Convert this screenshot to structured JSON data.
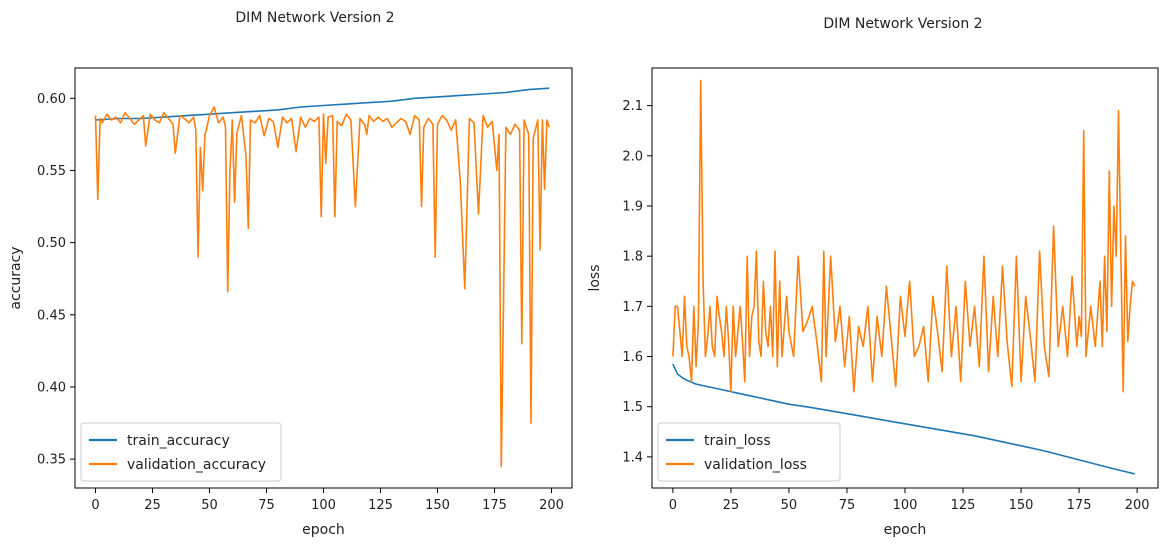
{
  "chart_data": [
    {
      "type": "line",
      "title": "DIM Network Version 2",
      "xlabel": "epoch",
      "ylabel": "accuracy",
      "xlim": [
        -9,
        209
      ],
      "ylim": [
        0.33,
        0.621
      ],
      "xticks": [
        "0",
        "25",
        "50",
        "75",
        "100",
        "125",
        "150",
        "175",
        "200"
      ],
      "yticks": [
        "0.35",
        "0.40",
        "0.45",
        "0.50",
        "0.55",
        "0.60"
      ],
      "grid": false,
      "legend_position": "lower-left",
      "series": [
        {
          "name": "train_accuracy",
          "color": "#1f77b4",
          "x": [
            0,
            10,
            20,
            30,
            40,
            50,
            60,
            70,
            80,
            90,
            100,
            110,
            120,
            130,
            140,
            150,
            160,
            170,
            180,
            190,
            199
          ],
          "y": [
            0.585,
            0.586,
            0.586,
            0.587,
            0.588,
            0.589,
            0.59,
            0.591,
            0.592,
            0.594,
            0.595,
            0.596,
            0.597,
            0.598,
            0.6,
            0.601,
            0.602,
            0.603,
            0.604,
            0.606,
            0.607
          ]
        },
        {
          "name": "validation_accuracy",
          "color": "#ff7f0e",
          "x": [
            0,
            1,
            2,
            3,
            5,
            7,
            9,
            11,
            13,
            15,
            17,
            19,
            21,
            22,
            24,
            26,
            28,
            30,
            32,
            34,
            35,
            37,
            39,
            41,
            43,
            44,
            45,
            46,
            47,
            48,
            50,
            52,
            54,
            56,
            57,
            58,
            59,
            60,
            61,
            62,
            64,
            66,
            67,
            68,
            70,
            72,
            74,
            76,
            78,
            80,
            82,
            84,
            86,
            88,
            90,
            92,
            94,
            96,
            98,
            99,
            100,
            101,
            102,
            104,
            105,
            106,
            108,
            110,
            112,
            114,
            116,
            118,
            119,
            120,
            122,
            124,
            126,
            128,
            130,
            132,
            134,
            136,
            138,
            140,
            142,
            143,
            144,
            146,
            148,
            149,
            150,
            152,
            154,
            156,
            158,
            160,
            162,
            164,
            166,
            168,
            170,
            172,
            174,
            176,
            177,
            178,
            180,
            182,
            184,
            186,
            187,
            188,
            190,
            191,
            192,
            194,
            195,
            196,
            197,
            198,
            199
          ],
          "y": [
            0.588,
            0.53,
            0.586,
            0.583,
            0.589,
            0.585,
            0.587,
            0.583,
            0.59,
            0.586,
            0.582,
            0.585,
            0.588,
            0.567,
            0.589,
            0.585,
            0.583,
            0.59,
            0.586,
            0.582,
            0.562,
            0.588,
            0.586,
            0.583,
            0.587,
            0.578,
            0.49,
            0.566,
            0.536,
            0.574,
            0.588,
            0.594,
            0.583,
            0.587,
            0.58,
            0.466,
            0.55,
            0.585,
            0.528,
            0.576,
            0.588,
            0.56,
            0.51,
            0.585,
            0.583,
            0.588,
            0.574,
            0.586,
            0.584,
            0.566,
            0.587,
            0.583,
            0.586,
            0.563,
            0.587,
            0.58,
            0.586,
            0.584,
            0.587,
            0.518,
            0.589,
            0.555,
            0.587,
            0.588,
            0.518,
            0.584,
            0.581,
            0.589,
            0.585,
            0.525,
            0.586,
            0.582,
            0.575,
            0.588,
            0.584,
            0.587,
            0.584,
            0.586,
            0.58,
            0.583,
            0.586,
            0.584,
            0.575,
            0.588,
            0.585,
            0.525,
            0.58,
            0.586,
            0.582,
            0.49,
            0.582,
            0.588,
            0.585,
            0.578,
            0.585,
            0.542,
            0.468,
            0.586,
            0.583,
            0.52,
            0.588,
            0.58,
            0.584,
            0.55,
            0.575,
            0.345,
            0.58,
            0.575,
            0.582,
            0.578,
            0.43,
            0.585,
            0.575,
            0.375,
            0.572,
            0.585,
            0.495,
            0.585,
            0.537,
            0.585,
            0.58
          ]
        }
      ]
    },
    {
      "type": "line",
      "title": "DIM Network Version 2",
      "xlabel": "epoch",
      "ylabel": "loss",
      "xlim": [
        -9,
        209
      ],
      "ylim": [
        1.338,
        2.175
      ],
      "xticks": [
        "0",
        "25",
        "50",
        "75",
        "100",
        "125",
        "150",
        "175",
        "200"
      ],
      "yticks": [
        "1.4",
        "1.5",
        "1.6",
        "1.7",
        "1.8",
        "1.9",
        "2.0",
        "2.1"
      ],
      "grid": false,
      "legend_position": "lower-left",
      "series": [
        {
          "name": "train_loss",
          "color": "#1f77b4",
          "x": [
            0,
            2,
            5,
            10,
            20,
            30,
            40,
            50,
            60,
            70,
            80,
            90,
            100,
            110,
            120,
            130,
            140,
            150,
            160,
            170,
            180,
            190,
            199
          ],
          "y": [
            1.585,
            1.565,
            1.555,
            1.545,
            1.535,
            1.525,
            1.515,
            1.505,
            1.498,
            1.49,
            1.482,
            1.474,
            1.466,
            1.458,
            1.45,
            1.442,
            1.432,
            1.422,
            1.412,
            1.4,
            1.388,
            1.376,
            1.366
          ]
        },
        {
          "name": "validation_loss",
          "color": "#ff7f0e",
          "x": [
            0,
            1,
            2,
            3,
            4,
            5,
            6,
            7,
            8,
            9,
            10,
            11,
            12,
            13,
            14,
            15,
            16,
            17,
            18,
            19,
            20,
            21,
            22,
            23,
            24,
            25,
            26,
            27,
            28,
            29,
            30,
            31,
            32,
            33,
            34,
            35,
            36,
            37,
            38,
            39,
            40,
            41,
            42,
            43,
            44,
            45,
            46,
            47,
            48,
            49,
            50,
            52,
            54,
            56,
            58,
            60,
            62,
            64,
            65,
            66,
            68,
            70,
            72,
            74,
            76,
            78,
            80,
            82,
            84,
            86,
            88,
            90,
            92,
            94,
            96,
            98,
            100,
            102,
            104,
            106,
            108,
            110,
            112,
            114,
            116,
            118,
            120,
            122,
            124,
            126,
            128,
            130,
            132,
            134,
            136,
            138,
            140,
            142,
            144,
            146,
            148,
            150,
            152,
            154,
            156,
            158,
            160,
            162,
            164,
            166,
            168,
            170,
            172,
            174,
            175,
            176,
            177,
            178,
            180,
            182,
            184,
            185,
            186,
            187,
            188,
            189,
            190,
            191,
            192,
            193,
            194,
            195,
            196,
            197,
            198,
            199
          ],
          "y": [
            1.6,
            1.7,
            1.7,
            1.65,
            1.6,
            1.72,
            1.62,
            1.6,
            1.55,
            1.7,
            1.58,
            1.67,
            2.15,
            1.75,
            1.6,
            1.64,
            1.7,
            1.62,
            1.6,
            1.72,
            1.68,
            1.65,
            1.6,
            1.7,
            1.63,
            1.53,
            1.7,
            1.6,
            1.65,
            1.7,
            1.63,
            1.55,
            1.8,
            1.6,
            1.68,
            1.7,
            1.81,
            1.63,
            1.6,
            1.75,
            1.65,
            1.62,
            1.7,
            1.6,
            1.81,
            1.58,
            1.75,
            1.6,
            1.66,
            1.72,
            1.65,
            1.6,
            1.8,
            1.65,
            1.67,
            1.7,
            1.63,
            1.55,
            1.81,
            1.6,
            1.8,
            1.63,
            1.7,
            1.58,
            1.68,
            1.53,
            1.66,
            1.62,
            1.7,
            1.55,
            1.68,
            1.6,
            1.74,
            1.64,
            1.54,
            1.72,
            1.64,
            1.75,
            1.6,
            1.62,
            1.66,
            1.55,
            1.72,
            1.65,
            1.57,
            1.78,
            1.6,
            1.7,
            1.55,
            1.75,
            1.62,
            1.7,
            1.58,
            1.8,
            1.57,
            1.72,
            1.6,
            1.78,
            1.63,
            1.54,
            1.8,
            1.55,
            1.72,
            1.64,
            1.55,
            1.81,
            1.62,
            1.56,
            1.86,
            1.62,
            1.7,
            1.6,
            1.76,
            1.62,
            1.68,
            1.64,
            2.05,
            1.6,
            1.7,
            1.62,
            1.75,
            1.62,
            1.8,
            1.65,
            1.97,
            1.7,
            1.9,
            1.8,
            2.09,
            1.8,
            1.53,
            1.84,
            1.63,
            1.7,
            1.75,
            1.74
          ]
        }
      ]
    }
  ]
}
